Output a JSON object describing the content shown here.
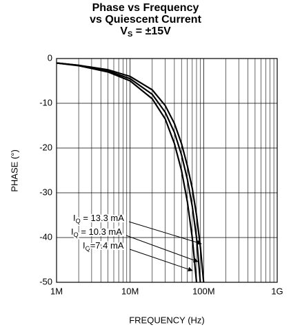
{
  "chart_data": {
    "type": "line",
    "title": [
      "Phase vs Frequency",
      "vs Quiescent Current",
      [
        "V",
        "S",
        " = ±15V"
      ]
    ],
    "xlabel": "FREQUENCY (Hz)",
    "ylabel": "PHASE (°)",
    "log_x": true,
    "grid": true,
    "minor_grid": true,
    "x": [
      1000000,
      2000000,
      5000000,
      10000000,
      20000000,
      30000000,
      40000000,
      50000000,
      60000000,
      70000000,
      80000000,
      90000000,
      100000000
    ],
    "series": [
      {
        "label": [
          "I",
          "Q",
          " = 13.3 mA"
        ],
        "color": "#000000",
        "values": [
          -1,
          -1.5,
          -2.5,
          -4,
          -7,
          -10.5,
          -14.5,
          -19,
          -24,
          -29,
          -35,
          -42,
          -50
        ]
      },
      {
        "label": [
          "I",
          "Q",
          " = 10.3 mA"
        ],
        "color": "#000000",
        "values": [
          -1,
          -1.5,
          -2.8,
          -4.5,
          -8,
          -12,
          -16.5,
          -21.5,
          -27,
          -33,
          -40,
          -50,
          null
        ]
      },
      {
        "label": [
          "I",
          "Q",
          "=7.4 mA"
        ],
        "color": "#000000",
        "values": [
          -1,
          -1.6,
          -3,
          -5,
          -9,
          -13.5,
          -19,
          -25,
          -32,
          -40,
          -50,
          null,
          null
        ]
      }
    ],
    "xlim": [
      1000000,
      1000000000
    ],
    "xticks": [
      {
        "value": 1000000,
        "label": "1M"
      },
      {
        "value": 10000000,
        "label": "10M"
      },
      {
        "value": 100000000,
        "label": "100M"
      },
      {
        "value": 1000000000,
        "label": "1G"
      }
    ],
    "ylim": [
      -50,
      0
    ],
    "yticks": [
      -50,
      -40,
      -30,
      -20,
      -10,
      0
    ]
  }
}
